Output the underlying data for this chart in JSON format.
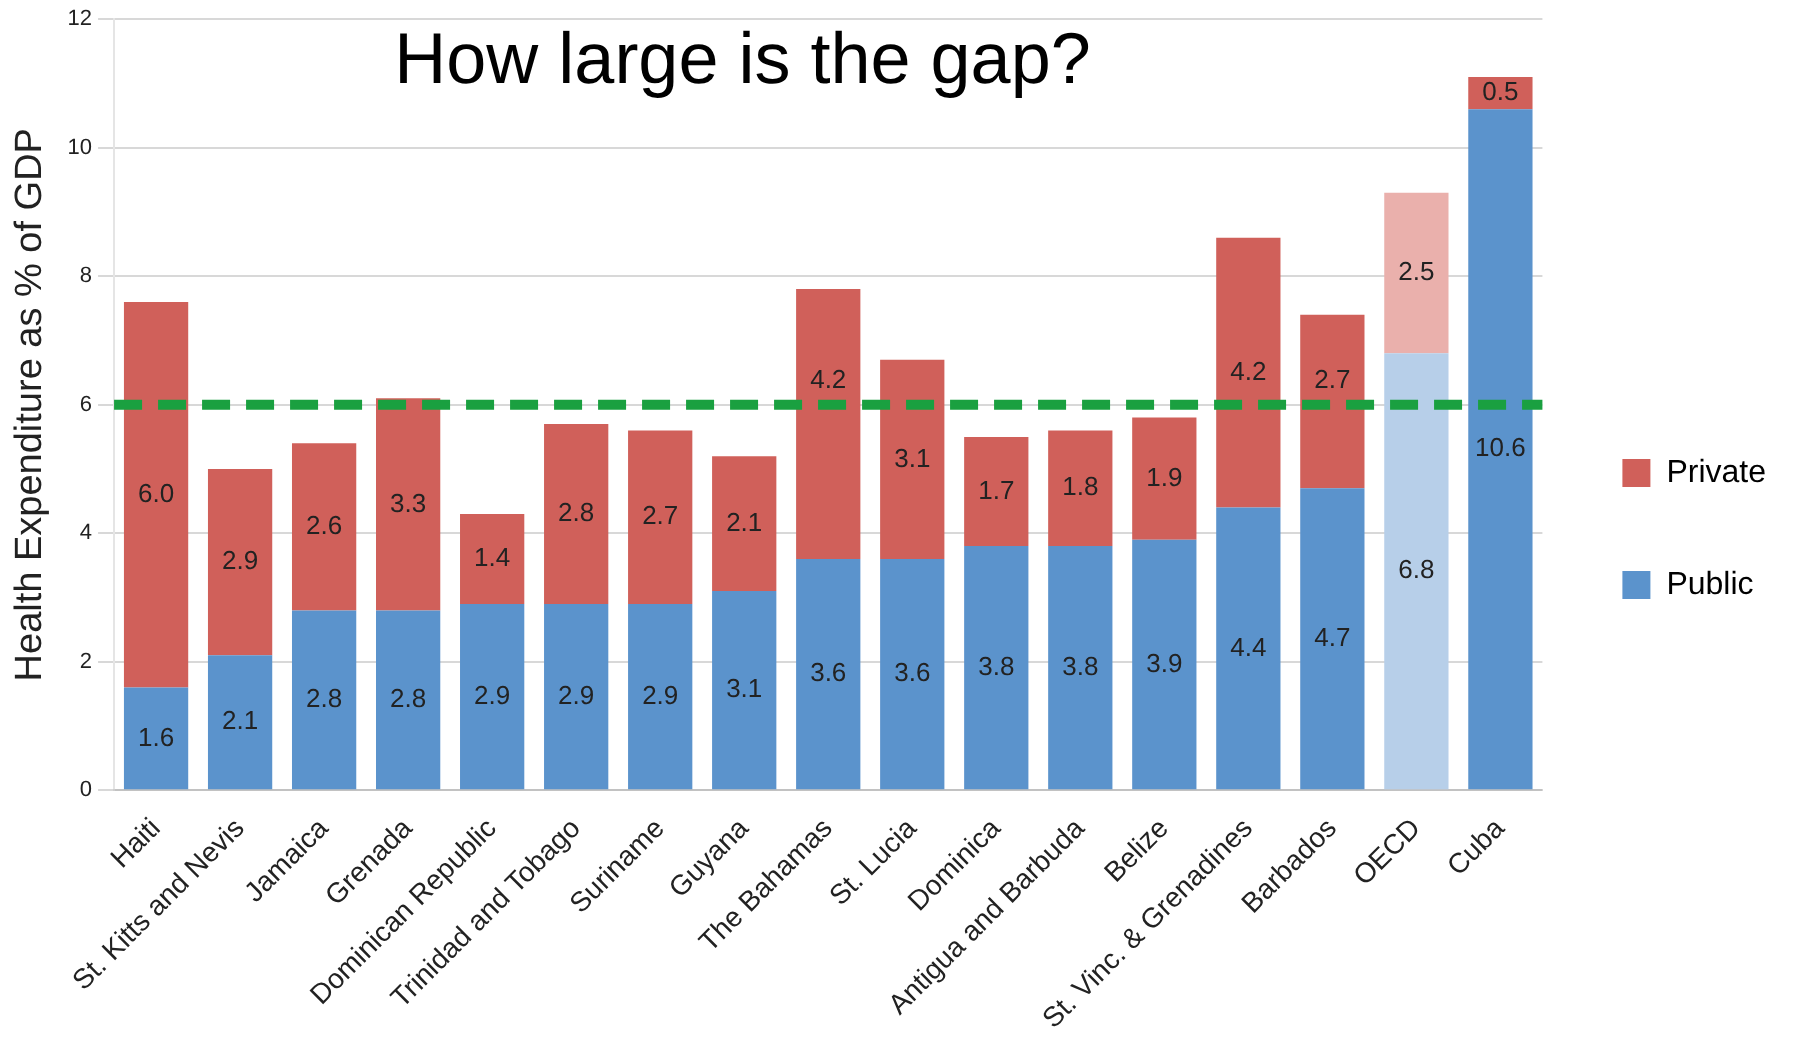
{
  "chart_data": {
    "type": "bar",
    "stacked": true,
    "title": "How large is the gap?",
    "ylabel": "Health Expenditure as % of GDP",
    "categories": [
      "Haiti",
      "St. Kitts and Nevis",
      "Jamaica",
      "Grenada",
      "Dominican Republic",
      "Trinidad and Tobago",
      "Suriname",
      "Guyana",
      "The Bahamas",
      "St. Lucia",
      "Dominica",
      "Antigua and Barbuda",
      "Belize",
      "St. Vinc. & Grenadines",
      "Barbados",
      "OECD",
      "Cuba"
    ],
    "series": [
      {
        "name": "Public",
        "color": "#5b93cc",
        "colors": [
          "#5b93cc",
          "#5b93cc",
          "#5b93cc",
          "#5b93cc",
          "#5b93cc",
          "#5b93cc",
          "#5b93cc",
          "#5b93cc",
          "#5b93cc",
          "#5b93cc",
          "#5b93cc",
          "#5b93cc",
          "#5b93cc",
          "#5b93cc",
          "#5b93cc",
          "#b7cfe9",
          "#5b93cc"
        ],
        "values": [
          1.6,
          2.1,
          2.8,
          2.8,
          2.9,
          2.9,
          2.9,
          3.1,
          3.6,
          3.6,
          3.8,
          3.8,
          3.9,
          4.4,
          4.7,
          6.8,
          10.6
        ],
        "value_labels": [
          "1.6",
          "2.1",
          "2.8",
          "2.8",
          "2.9",
          "2.9",
          "2.9",
          "3.1",
          "3.6",
          "3.6",
          "3.8",
          "3.8",
          "3.9",
          "4.4",
          "4.7",
          "6.8",
          "10.6"
        ]
      },
      {
        "name": "Private",
        "color": "#d0605a",
        "colors": [
          "#d0605a",
          "#d0605a",
          "#d0605a",
          "#d0605a",
          "#d0605a",
          "#d0605a",
          "#d0605a",
          "#d0605a",
          "#d0605a",
          "#d0605a",
          "#d0605a",
          "#d0605a",
          "#d0605a",
          "#d0605a",
          "#d0605a",
          "#eab0ac",
          "#d0605a"
        ],
        "values": [
          6.0,
          2.9,
          2.6,
          3.3,
          1.4,
          2.8,
          2.7,
          2.1,
          4.2,
          3.1,
          1.7,
          1.8,
          1.9,
          4.2,
          2.7,
          2.5,
          0.5
        ],
        "value_labels": [
          "6.0",
          "2.9",
          "2.6",
          "3.3",
          "1.4",
          "2.8",
          "2.7",
          "2.1",
          "4.2",
          "3.1",
          "1.7",
          "1.8",
          "1.9",
          "4.2",
          "2.7",
          "2.5",
          "0.5"
        ]
      }
    ],
    "ylim": [
      0,
      12
    ],
    "yticks": [
      0,
      2,
      4,
      6,
      8,
      10,
      12
    ],
    "grid": "y",
    "legend": "right",
    "ref_lines": [
      {
        "axis": "y",
        "value": 6,
        "color": "#1aa040",
        "line_style": "dashed"
      }
    ]
  }
}
